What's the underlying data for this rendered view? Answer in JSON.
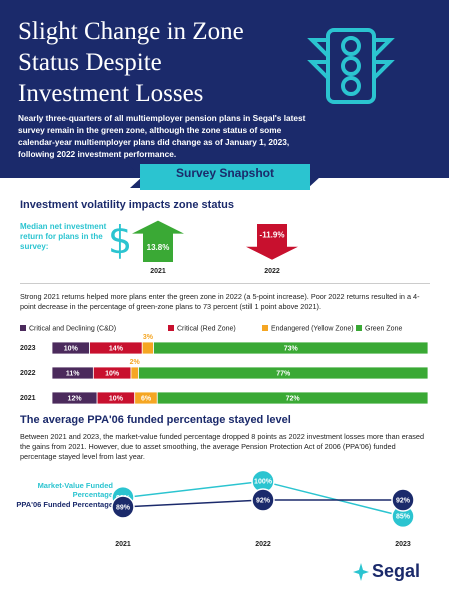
{
  "header": {
    "title": "Slight Change in Zone Status Despite Investment Losses",
    "intro": "Nearly three-quarters of all multiemployer pension plans in Segal's latest survey remain in the green zone, although the zone status of some calendar-year multiemployer plans did change as of January 1, 2023, following 2022 investment performance."
  },
  "banner": "Survey Snapshot",
  "section1": {
    "heading": "Investment volatility impacts zone status",
    "label": "Median net investment return for plans in the survey:",
    "text": "Strong 2021 returns helped more plans enter the green zone in 2022 (a 5-point increase). Poor 2022 returns resulted in a 4-point decrease in the percentage of green-zone plans to 73 percent (still 1 point above 2021)."
  },
  "section2": {
    "heading": "The average PPA'06 funded percentage stayed level",
    "text": "Between 2021 and 2023, the market-value funded percentage dropped 8 points as 2022 investment losses more than erased the gains from 2021. However, due to asset smoothing, the average Pension Protection Act of 2006 (PPA'06) funded percentage stayed level from last year."
  },
  "logo": "Segal",
  "chart_data": [
    {
      "type": "arrow",
      "categories": [
        "2021",
        "2022"
      ],
      "values": [
        13.8,
        -11.9
      ],
      "value_labels": [
        "13.8%",
        "-11.9%"
      ],
      "colors": [
        "#3aa935",
        "#c8102e"
      ]
    },
    {
      "type": "bar",
      "horizontal": true,
      "stacked": true,
      "categories": [
        "2023",
        "2022",
        "2021"
      ],
      "xlim": [
        0,
        100
      ],
      "series": [
        {
          "name": "Critical and Declining (C&D)",
          "color": "#4b2a5c",
          "values": [
            10,
            11,
            12
          ],
          "value_labels": [
            "10%",
            "11%",
            "12%"
          ]
        },
        {
          "name": "Critical (Red Zone)",
          "color": "#c8102e",
          "values": [
            14,
            10,
            10
          ],
          "value_labels": [
            "14%",
            "10%",
            "10%"
          ]
        },
        {
          "name": "Endangered (Yellow Zone)",
          "color": "#f5a623",
          "values": [
            3,
            2,
            6
          ],
          "value_labels": [
            "3%",
            "2%",
            "6%"
          ]
        },
        {
          "name": "Green Zone",
          "color": "#3aa935",
          "values": [
            73,
            77,
            72
          ],
          "value_labels": [
            "73%",
            "77%",
            "72%"
          ]
        }
      ]
    },
    {
      "type": "line",
      "x": [
        "2021",
        "2022",
        "2023"
      ],
      "ylim": [
        80,
        104
      ],
      "series": [
        {
          "name": "Market-Value Funded Percentage",
          "color": "#2bc4d0",
          "values": [
            93,
            100,
            85
          ],
          "value_labels": [
            "93%",
            "100%",
            "85%"
          ]
        },
        {
          "name": "PPA'06 Funded Percentage",
          "color": "#1b2a6b",
          "values": [
            89,
            92,
            92
          ],
          "value_labels": [
            "89%",
            "92%",
            "92%"
          ]
        }
      ]
    }
  ]
}
